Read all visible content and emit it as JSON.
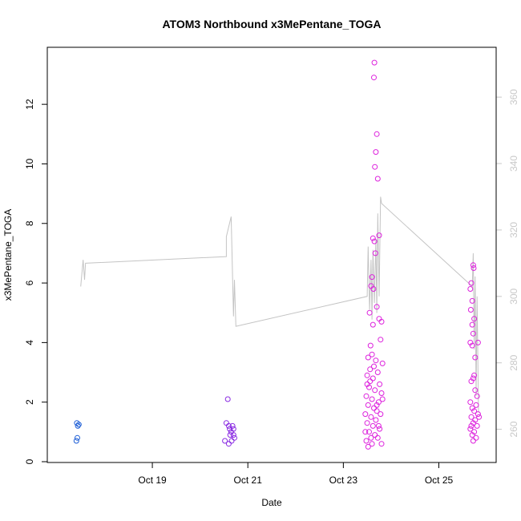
{
  "chart_data": {
    "type": "scatter",
    "title": "ATOM3 Northbound x3MePentane_TOGA",
    "xlabel": "Date",
    "ylabel": "x3MePentane_TOGA",
    "x_tick_labels": [
      {
        "day": 19,
        "label": "Oct 19"
      },
      {
        "day": 21,
        "label": "Oct 21"
      },
      {
        "day": 23,
        "label": "Oct 23"
      },
      {
        "day": 25,
        "label": "Oct 25"
      }
    ],
    "xlim_days": [
      16.8,
      26.2
    ],
    "ylim": [
      0,
      13.8
    ],
    "y_ticks": [
      0,
      2,
      4,
      6,
      8,
      10,
      12
    ],
    "y2_ticks": [
      260,
      280,
      300,
      320,
      340,
      360
    ],
    "y2lim": [
      250,
      375
    ],
    "colors": {
      "early": "#1f5fd6",
      "mid": "#8a2be2",
      "late": "#dd22dd",
      "secondary_line": "#c4c4c4",
      "secondary_axis": "#c8c8c8"
    },
    "secondary_line": [
      [
        17.5,
        303
      ],
      [
        17.55,
        311
      ],
      [
        17.58,
        305
      ],
      [
        17.6,
        310
      ],
      [
        20.55,
        312
      ],
      [
        20.55,
        318
      ],
      [
        20.65,
        324
      ],
      [
        20.7,
        294
      ],
      [
        20.72,
        305
      ],
      [
        20.75,
        291
      ],
      [
        23.5,
        300
      ],
      [
        23.52,
        315
      ],
      [
        23.55,
        296
      ],
      [
        23.58,
        311
      ],
      [
        23.6,
        293
      ],
      [
        23.62,
        314
      ],
      [
        23.65,
        298
      ],
      [
        23.68,
        317
      ],
      [
        23.7,
        295
      ],
      [
        23.72,
        325
      ],
      [
        23.75,
        300
      ],
      [
        23.78,
        330
      ],
      [
        23.8,
        328
      ],
      [
        25.7,
        303
      ],
      [
        25.72,
        313
      ],
      [
        25.74,
        284
      ],
      [
        25.76,
        306
      ],
      [
        25.78,
        270
      ],
      [
        25.8,
        300
      ],
      [
        25.83,
        265
      ]
    ],
    "series": [
      {
        "group": "early",
        "points": [
          [
            17.42,
            1.3
          ],
          [
            17.44,
            1.2
          ],
          [
            17.46,
            1.25
          ],
          [
            17.43,
            0.8
          ],
          [
            17.41,
            0.7
          ]
        ]
      },
      {
        "group": "mid",
        "points": [
          [
            20.58,
            2.1
          ],
          [
            20.55,
            1.3
          ],
          [
            20.6,
            1.2
          ],
          [
            20.62,
            1.1
          ],
          [
            20.65,
            1.0
          ],
          [
            20.68,
            1.2
          ],
          [
            20.7,
            0.9
          ],
          [
            20.72,
            0.8
          ],
          [
            20.66,
            0.7
          ],
          [
            20.6,
            0.6
          ],
          [
            20.63,
            0.9
          ],
          [
            20.7,
            1.1
          ],
          [
            20.52,
            0.7
          ]
        ]
      },
      {
        "group": "late",
        "points": [
          [
            23.65,
            13.4
          ],
          [
            23.64,
            12.9
          ],
          [
            23.7,
            11.0
          ],
          [
            23.68,
            10.4
          ],
          [
            23.66,
            9.9
          ],
          [
            23.72,
            9.5
          ],
          [
            23.75,
            7.6
          ],
          [
            23.62,
            7.5
          ],
          [
            23.65,
            7.4
          ],
          [
            23.67,
            7.0
          ],
          [
            23.6,
            6.2
          ],
          [
            23.58,
            5.9
          ],
          [
            23.63,
            5.8
          ],
          [
            23.7,
            5.2
          ],
          [
            23.55,
            5.0
          ],
          [
            23.75,
            4.8
          ],
          [
            23.8,
            4.7
          ],
          [
            23.62,
            4.6
          ],
          [
            23.78,
            4.1
          ],
          [
            23.57,
            3.9
          ],
          [
            23.6,
            3.6
          ],
          [
            23.52,
            3.5
          ],
          [
            23.68,
            3.4
          ],
          [
            23.82,
            3.3
          ],
          [
            23.56,
            3.1
          ],
          [
            23.72,
            3.0
          ],
          [
            23.5,
            2.9
          ],
          [
            23.62,
            2.8
          ],
          [
            23.76,
            2.6
          ],
          [
            23.54,
            2.5
          ],
          [
            23.66,
            2.4
          ],
          [
            23.8,
            2.3
          ],
          [
            23.48,
            2.2
          ],
          [
            23.6,
            2.1
          ],
          [
            23.74,
            2.0
          ],
          [
            23.52,
            1.9
          ],
          [
            23.64,
            1.8
          ],
          [
            23.7,
            1.7
          ],
          [
            23.46,
            1.6
          ],
          [
            23.58,
            1.5
          ],
          [
            23.68,
            1.4
          ],
          [
            23.5,
            1.3
          ],
          [
            23.62,
            1.2
          ],
          [
            23.76,
            1.1
          ],
          [
            23.54,
            1.0
          ],
          [
            23.66,
            0.9
          ],
          [
            23.72,
            0.8
          ],
          [
            23.48,
            0.7
          ],
          [
            23.6,
            0.6
          ],
          [
            23.52,
            0.5
          ],
          [
            23.56,
            2.7
          ],
          [
            23.7,
            1.9
          ],
          [
            23.74,
            1.2
          ],
          [
            23.46,
            1.0
          ],
          [
            23.58,
            0.8
          ],
          [
            23.8,
            0.6
          ],
          [
            23.64,
            3.2
          ],
          [
            23.5,
            2.6
          ],
          [
            23.78,
            1.6
          ],
          [
            23.82,
            2.1
          ],
          [
            25.72,
            6.6
          ],
          [
            25.73,
            6.5
          ],
          [
            25.68,
            6.0
          ],
          [
            25.66,
            5.8
          ],
          [
            25.7,
            5.4
          ],
          [
            25.67,
            5.1
          ],
          [
            25.74,
            4.8
          ],
          [
            25.7,
            4.6
          ],
          [
            25.72,
            4.3
          ],
          [
            25.66,
            4.0
          ],
          [
            25.82,
            4.0
          ],
          [
            25.7,
            3.9
          ],
          [
            25.76,
            3.5
          ],
          [
            25.74,
            2.9
          ],
          [
            25.68,
            2.7
          ],
          [
            25.72,
            2.8
          ],
          [
            25.8,
            2.2
          ],
          [
            25.66,
            2.0
          ],
          [
            25.78,
            1.9
          ],
          [
            25.7,
            1.8
          ],
          [
            25.74,
            1.7
          ],
          [
            25.82,
            1.6
          ],
          [
            25.68,
            1.5
          ],
          [
            25.76,
            1.4
          ],
          [
            25.72,
            1.3
          ],
          [
            25.8,
            1.2
          ],
          [
            25.66,
            1.1
          ],
          [
            25.74,
            1.0
          ],
          [
            25.7,
            0.9
          ],
          [
            25.78,
            0.8
          ],
          [
            25.72,
            0.7
          ],
          [
            25.84,
            1.5
          ],
          [
            25.76,
            2.4
          ],
          [
            25.68,
            1.2
          ]
        ]
      }
    ]
  }
}
